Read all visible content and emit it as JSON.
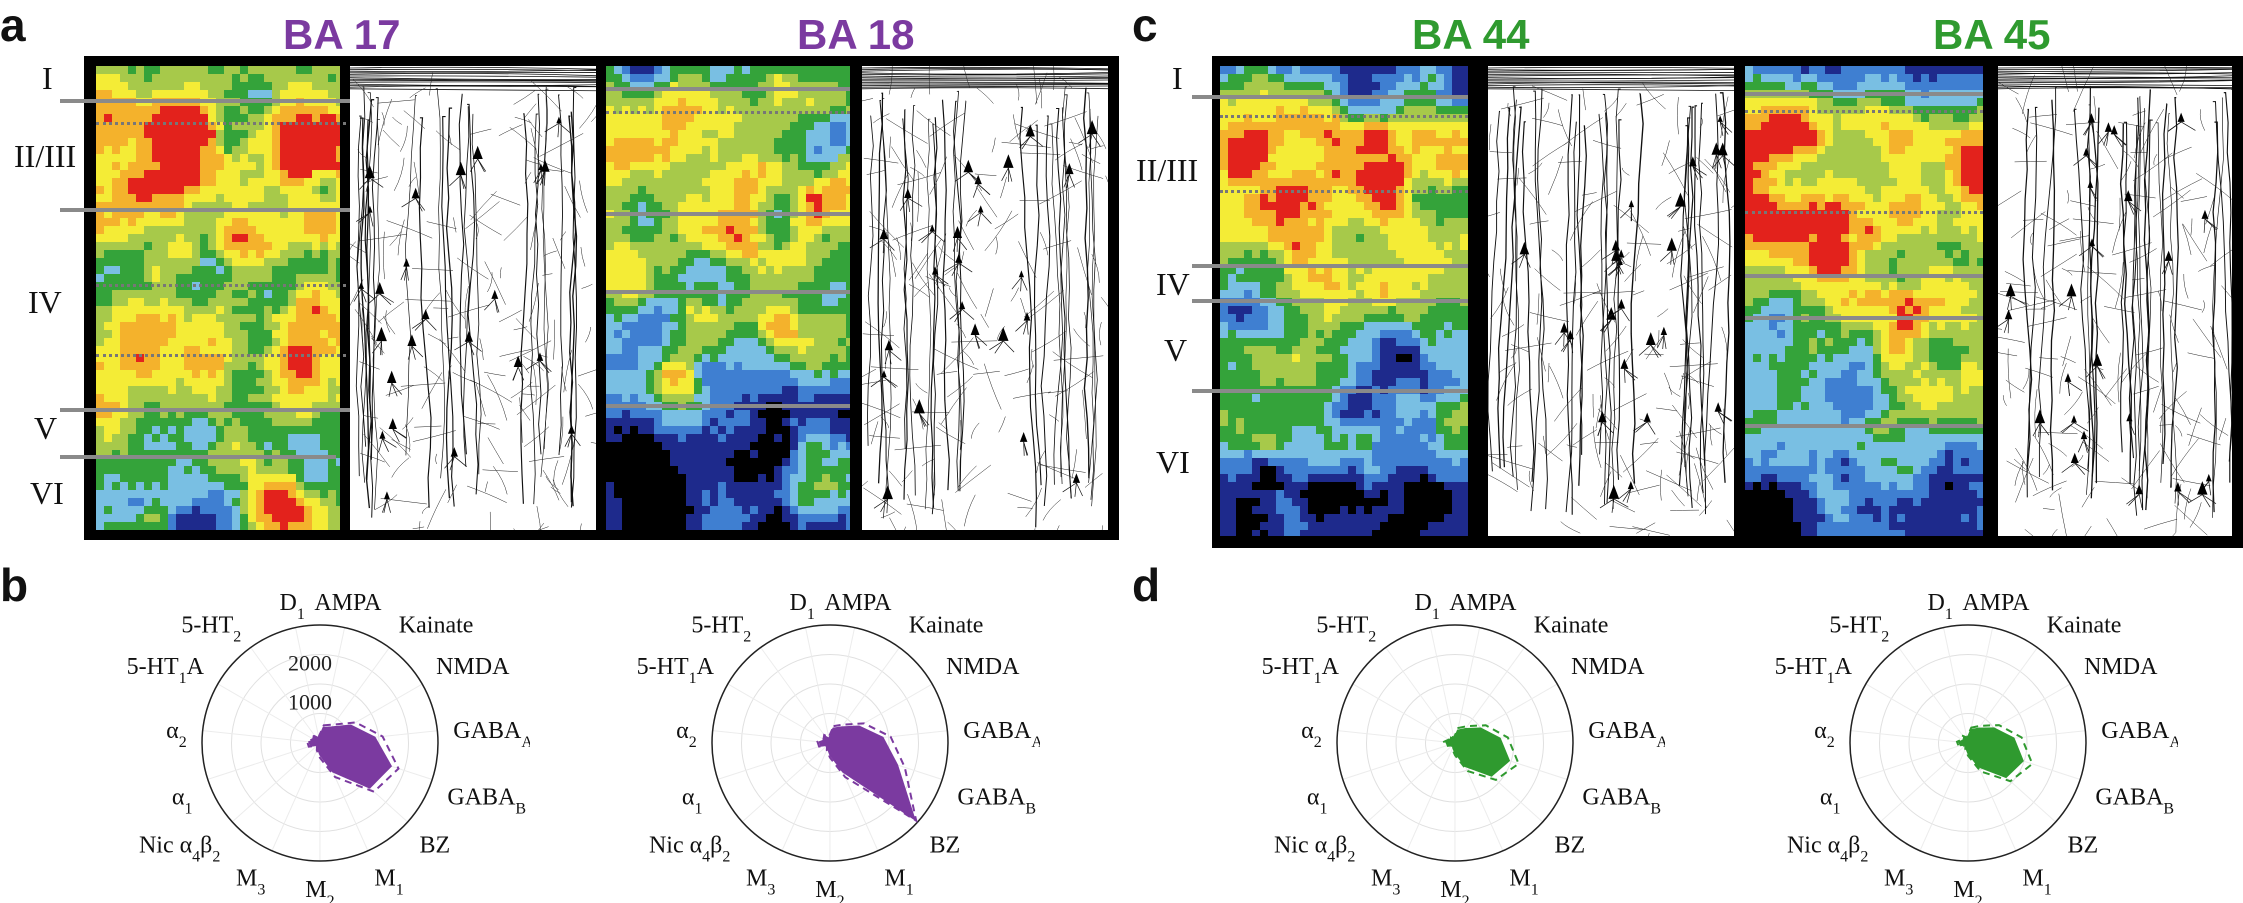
{
  "panels": {
    "a": {
      "letter": "a",
      "titles": [
        {
          "text": "BA 17",
          "color": "#7b3aa0"
        },
        {
          "text": "BA 18",
          "color": "#7b3aa0"
        }
      ]
    },
    "b": {
      "letter": "b"
    },
    "c": {
      "letter": "c",
      "titles": [
        {
          "text": "BA 44",
          "color": "#2f9a2f"
        },
        {
          "text": "BA 45",
          "color": "#2f9a2f"
        }
      ]
    },
    "d": {
      "letter": "d"
    }
  },
  "layers_left": [
    "I",
    "II/III",
    "IV",
    "V",
    "VI"
  ],
  "layers_right": [
    "I",
    "II/III",
    "IV",
    "V",
    "VI"
  ],
  "heatmap_colors": {
    "black": "#000000",
    "navy": "#1e2a8c",
    "blue": "#3f7fd1",
    "lightblue": "#79bfe3",
    "green": "#34a33a",
    "lightgreen": "#a7c94a",
    "yellow": "#f4ec36",
    "orange": "#f4b22c",
    "red": "#e3221c"
  },
  "radar": {
    "receptors": [
      "AMPA",
      "Kainate",
      "NMDA",
      "GABA_A",
      "GABA_B",
      "BZ",
      "M_1",
      "M_2",
      "M_3",
      "Nic α_4β_2",
      "α_1",
      "α_2",
      "5-HT_1A",
      "5-HT_2",
      "D_1"
    ],
    "ring_ticks": [
      {
        "value": 1000,
        "label": "1000"
      },
      {
        "value": 2000,
        "label": "2000"
      }
    ],
    "max_value": 3000,
    "charts": [
      {
        "name": "BA 17",
        "color": "#7b3aa0",
        "show_ticks": true,
        "values": [
          400,
          500,
          900,
          1400,
          1900,
          1700,
          800,
          300,
          150,
          80,
          250,
          280,
          160,
          220,
          130
        ],
        "dashed": [
          460,
          580,
          1050,
          1600,
          2100,
          1850,
          950,
          380,
          200,
          100,
          300,
          330,
          200,
          260,
          160
        ]
      },
      {
        "name": "BA 18",
        "color": "#7b3aa0",
        "show_ticks": false,
        "values": [
          380,
          500,
          850,
          1350,
          1800,
          2900,
          800,
          300,
          150,
          80,
          240,
          270,
          150,
          210,
          120
        ],
        "dashed": [
          440,
          580,
          1000,
          1550,
          2000,
          2950,
          950,
          370,
          200,
          100,
          290,
          320,
          190,
          250,
          150
        ]
      },
      {
        "name": "BA 44",
        "color": "#2f9a2f",
        "show_ticks": false,
        "values": [
          330,
          450,
          750,
          1150,
          1450,
          1250,
          650,
          250,
          130,
          70,
          200,
          230,
          140,
          180,
          110
        ],
        "dashed": [
          390,
          530,
          900,
          1350,
          1700,
          1400,
          780,
          310,
          170,
          90,
          250,
          280,
          180,
          220,
          140
        ]
      },
      {
        "name": "BA 45",
        "color": "#2f9a2f",
        "show_ticks": false,
        "values": [
          340,
          460,
          760,
          1170,
          1470,
          1300,
          660,
          260,
          130,
          70,
          200,
          230,
          140,
          180,
          110
        ],
        "dashed": [
          400,
          540,
          910,
          1370,
          1720,
          1450,
          790,
          320,
          170,
          90,
          250,
          280,
          180,
          220,
          140
        ]
      }
    ]
  }
}
